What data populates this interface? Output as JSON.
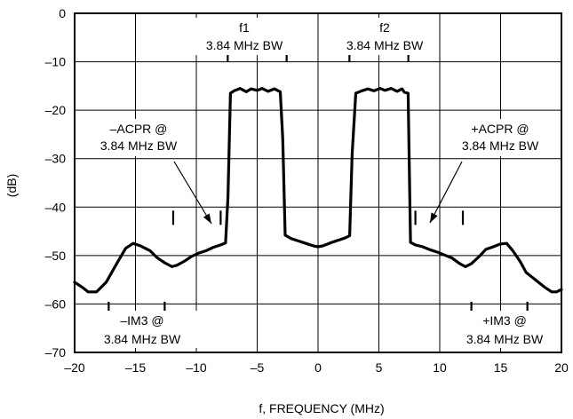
{
  "chart_data": {
    "type": "line",
    "title": "",
    "xlabel": "f, FREQUENCY (MHz)",
    "ylabel": "(dB)",
    "xlim": [
      -20,
      20
    ],
    "ylim": [
      -70,
      0
    ],
    "x_ticks": [
      -20,
      -15,
      -10,
      -5,
      0,
      5,
      10,
      15,
      20
    ],
    "y_ticks": [
      0,
      -10,
      -20,
      -30,
      -40,
      -50,
      -60,
      -70
    ],
    "x_tick_labels": [
      "–20",
      "–15",
      "–10",
      "–5",
      "0",
      "5",
      "10",
      "15",
      "20"
    ],
    "y_tick_labels": [
      "0",
      "–10",
      "–20",
      "–30",
      "–40",
      "–50",
      "–60",
      "–70"
    ],
    "grid": true,
    "legend": "none",
    "series": [
      {
        "x": [
          -20,
          -19.4,
          -18.9,
          -18.2,
          -17.4,
          -16.5,
          -15.8,
          -15.2,
          -14.6,
          -13.8,
          -13.2,
          -12.6,
          -12.0,
          -11.6,
          -11.0,
          -10.4,
          -9.8,
          -9.2,
          -8.6,
          -8.0,
          -7.6,
          -7.4,
          -7.2,
          -6.9,
          -6.4,
          -5.9,
          -5.5,
          -5.0,
          -4.6,
          -4.1,
          -3.6,
          -3.1,
          -2.9,
          -2.7,
          -2.2,
          -1.6,
          -1.0,
          -0.4,
          0,
          0.4,
          1.0,
          1.6,
          2.2,
          2.6,
          2.8,
          3.1,
          3.6,
          4.1,
          4.6,
          5.1,
          5.5,
          6.0,
          6.5,
          6.9,
          7.1,
          7.4,
          7.6,
          8.0,
          8.6,
          9.2,
          9.8,
          10.4,
          11.0,
          11.6,
          12.1,
          12.6,
          13.2,
          13.8,
          14.4,
          15.0,
          15.5,
          16.0,
          16.6,
          17.1,
          17.6,
          18.1,
          18.6,
          19.2,
          19.6,
          20
        ],
        "y": [
          -55.5,
          -56.5,
          -57.5,
          -57.5,
          -55.5,
          -51.5,
          -48.5,
          -47.5,
          -48.0,
          -49.0,
          -50.5,
          -51.5,
          -52.3,
          -52.0,
          -51.2,
          -50.2,
          -49.5,
          -49.0,
          -48.3,
          -47.8,
          -47.4,
          -38.0,
          -16.5,
          -16.0,
          -15.5,
          -16.2,
          -15.6,
          -15.9,
          -15.5,
          -16.1,
          -15.6,
          -16.2,
          -26.0,
          -45.8,
          -46.5,
          -47.0,
          -47.5,
          -48.0,
          -48.2,
          -48.0,
          -47.4,
          -46.9,
          -46.4,
          -45.9,
          -29.0,
          -16.5,
          -16.0,
          -15.6,
          -16.0,
          -15.5,
          -15.9,
          -15.5,
          -16.1,
          -15.6,
          -16.3,
          -16.5,
          -47.3,
          -47.8,
          -48.2,
          -48.8,
          -49.3,
          -49.9,
          -50.5,
          -51.6,
          -52.3,
          -51.7,
          -50.3,
          -48.7,
          -48.2,
          -47.6,
          -47.5,
          -49.0,
          -51.2,
          -53.5,
          -54.5,
          -55.5,
          -56.5,
          -57.5,
          -57.5,
          -57.0
        ]
      }
    ],
    "band_markers": [
      {
        "x": -7.42,
        "y": -8.5
      },
      {
        "x": -2.58,
        "y": -8.5
      },
      {
        "x": 2.58,
        "y": -8.5
      },
      {
        "x": 7.42,
        "y": -8.5
      },
      {
        "x": -11.9,
        "y": -42.2
      },
      {
        "x": -8.0,
        "y": -42.2
      },
      {
        "x": 8.0,
        "y": -42.2
      },
      {
        "x": 11.9,
        "y": -42.2
      },
      {
        "x": -17.2,
        "y": -61.0
      },
      {
        "x": -12.6,
        "y": -61.0
      },
      {
        "x": 12.6,
        "y": -61.0
      },
      {
        "x": 17.2,
        "y": -61.0
      }
    ],
    "annotations": {
      "f1_name": "f1",
      "f1_bw": "3.84 MHz BW",
      "f2_name": "f2",
      "f2_bw": "3.84 MHz BW",
      "neg_acpr_line1": "–ACPR @",
      "neg_acpr_line2": "3.84 MHz BW",
      "pos_acpr_line1": "+ACPR @",
      "pos_acpr_line2": "3.84 MHz BW",
      "neg_im3_line1": "–IM3 @",
      "neg_im3_line2": "3.84 MHz BW",
      "pos_im3_line1": "+IM3 @",
      "pos_im3_line2": "3.84 MHz BW"
    }
  }
}
